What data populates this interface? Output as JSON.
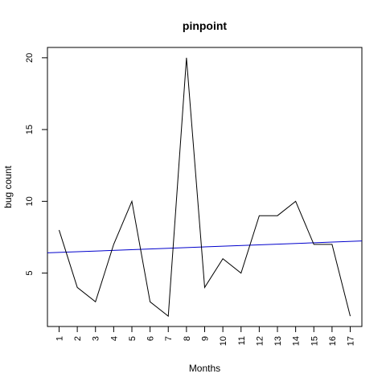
{
  "chart_data": {
    "type": "line",
    "title": "pinpoint",
    "xlabel": "Months",
    "ylabel": "bug count",
    "x": [
      1,
      2,
      3,
      4,
      5,
      6,
      7,
      8,
      9,
      10,
      11,
      12,
      13,
      14,
      15,
      16,
      17
    ],
    "x_tick_labels": [
      "1",
      "2",
      "3",
      "4",
      "5",
      "6",
      "7",
      "8",
      "9",
      "10",
      "11",
      "12",
      "13",
      "14",
      "15",
      "16",
      "17"
    ],
    "y_ticks": [
      5,
      10,
      15,
      20
    ],
    "y_tick_labels": [
      "5",
      "10",
      "15",
      "20"
    ],
    "xlim": [
      0.36,
      17.64
    ],
    "ylim": [
      1.28,
      20.72
    ],
    "grid": false,
    "series": [
      {
        "values": [
          8,
          4,
          3,
          7,
          10,
          3,
          2,
          20,
          4,
          6,
          5,
          9,
          9,
          10,
          7,
          7,
          2
        ],
        "color": "#000000"
      }
    ],
    "trend_line": {
      "color": "#0000cc",
      "start": [
        0.36,
        6.41
      ],
      "end": [
        17.64,
        7.24
      ]
    }
  }
}
